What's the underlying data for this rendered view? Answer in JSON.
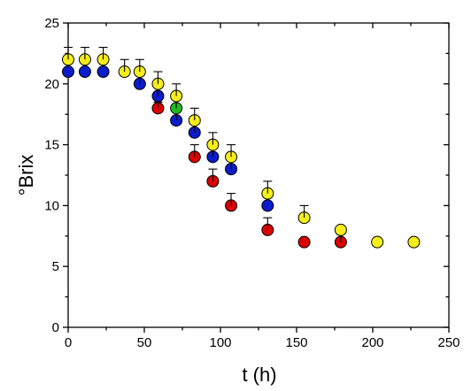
{
  "chart_data": {
    "type": "scatter",
    "xlabel": "t (h)",
    "ylabel": "°Brix",
    "xlim": [
      0,
      250
    ],
    "ylim": [
      0,
      25
    ],
    "xticks": [
      0,
      50,
      100,
      150,
      200,
      250
    ],
    "yticks": [
      0,
      5,
      10,
      15,
      20,
      25
    ],
    "xtick_labels": [
      "0",
      "50",
      "100",
      "150",
      "200",
      "250"
    ],
    "ytick_labels": [
      "0",
      "5",
      "10",
      "15",
      "20",
      "25"
    ],
    "grid": false,
    "legend": "none",
    "series": [
      {
        "color": "#dd0000",
        "points": [
          {
            "x": 59,
            "y": 18,
            "err": 0.5
          },
          {
            "x": 83,
            "y": 14,
            "err": 1
          },
          {
            "x": 95,
            "y": 12,
            "err": 1
          },
          {
            "x": 107,
            "y": 10,
            "err": 1
          },
          {
            "x": 131,
            "y": 8,
            "err": 1
          },
          {
            "x": 155,
            "y": 7,
            "err": 0
          },
          {
            "x": 179,
            "y": 7,
            "err": 1
          }
        ]
      },
      {
        "color": "#22bb22",
        "points": [
          {
            "x": 71,
            "y": 18,
            "err": 1
          }
        ]
      },
      {
        "color": "#0a1ccc",
        "points": [
          {
            "x": 0,
            "y": 21,
            "err": 0
          },
          {
            "x": 11,
            "y": 21,
            "err": 0
          },
          {
            "x": 23,
            "y": 21,
            "err": 0
          },
          {
            "x": 47,
            "y": 20,
            "err": 1
          },
          {
            "x": 59,
            "y": 19,
            "err": 1
          },
          {
            "x": 71,
            "y": 17,
            "err": 1
          },
          {
            "x": 83,
            "y": 16,
            "err": 1
          },
          {
            "x": 95,
            "y": 14,
            "err": 1
          },
          {
            "x": 107,
            "y": 13,
            "err": 1
          },
          {
            "x": 131,
            "y": 10,
            "err": 0
          }
        ]
      },
      {
        "color": "#f5ee1a",
        "points": [
          {
            "x": 0,
            "y": 22,
            "err": 1
          },
          {
            "x": 11,
            "y": 22,
            "err": 1
          },
          {
            "x": 23,
            "y": 22,
            "err": 1
          },
          {
            "x": 37,
            "y": 21,
            "err": 1
          },
          {
            "x": 47,
            "y": 21,
            "err": 1
          },
          {
            "x": 59,
            "y": 20,
            "err": 1
          },
          {
            "x": 71,
            "y": 19,
            "err": 1
          },
          {
            "x": 83,
            "y": 17,
            "err": 1
          },
          {
            "x": 95,
            "y": 15,
            "err": 1
          },
          {
            "x": 107,
            "y": 14,
            "err": 1
          },
          {
            "x": 131,
            "y": 11,
            "err": 1
          },
          {
            "x": 155,
            "y": 9,
            "err": 1
          },
          {
            "x": 179,
            "y": 8,
            "err": 0
          },
          {
            "x": 203,
            "y": 7,
            "err": 0
          },
          {
            "x": 227,
            "y": 7,
            "err": 0
          }
        ]
      }
    ]
  }
}
